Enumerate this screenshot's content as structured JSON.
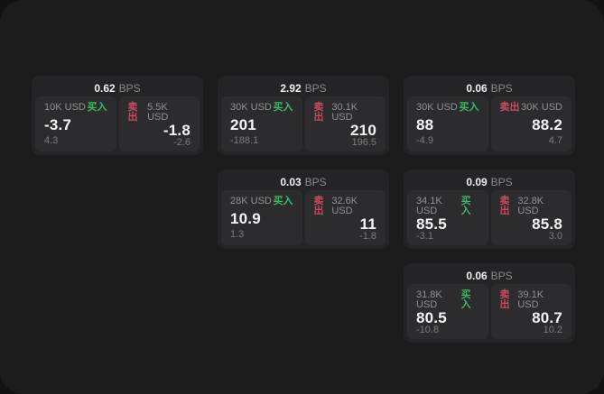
{
  "labels": {
    "bps_suffix": "BPS",
    "buy": "买入",
    "sell": "卖出"
  },
  "colors": {
    "background": "#121212",
    "panel": "#1c1c1c",
    "card": "#242426",
    "tile": "#2c2c2e",
    "buy_green": "#3dbb63",
    "sell_red": "#cb4b61",
    "value_white": "#f5f5f7",
    "label_gray": "#929296"
  },
  "cards": [
    {
      "bps": "0.62",
      "buy": {
        "size": "10K USD",
        "value": "-3.7",
        "delta": "4.3"
      },
      "sell": {
        "size": "5.5K USD",
        "value": "-1.8",
        "delta": "-2.6"
      }
    },
    {
      "bps": "2.92",
      "buy": {
        "size": "30K USD",
        "value": "201",
        "delta": "-188.1"
      },
      "sell": {
        "size": "30.1K USD",
        "value": "210",
        "delta": "196.5"
      }
    },
    {
      "bps": "0.06",
      "buy": {
        "size": "30K USD",
        "value": "88",
        "delta": "-4.9"
      },
      "sell": {
        "size": "30K USD",
        "value": "88.2",
        "delta": "4.7"
      }
    },
    {
      "bps": "0.03",
      "buy": {
        "size": "28K USD",
        "value": "10.9",
        "delta": "1.3"
      },
      "sell": {
        "size": "32.6K USD",
        "value": "11",
        "delta": "-1.8"
      }
    },
    {
      "bps": "0.09",
      "buy": {
        "size": "34.1K USD",
        "value": "85.5",
        "delta": "-3.1"
      },
      "sell": {
        "size": "32.8K USD",
        "value": "85.8",
        "delta": "3.0"
      }
    },
    {
      "bps": "0.06",
      "buy": {
        "size": "31.8K USD",
        "value": "80.5",
        "delta": "-10.8"
      },
      "sell": {
        "size": "39.1K USD",
        "value": "80.7",
        "delta": "10.2"
      }
    }
  ]
}
